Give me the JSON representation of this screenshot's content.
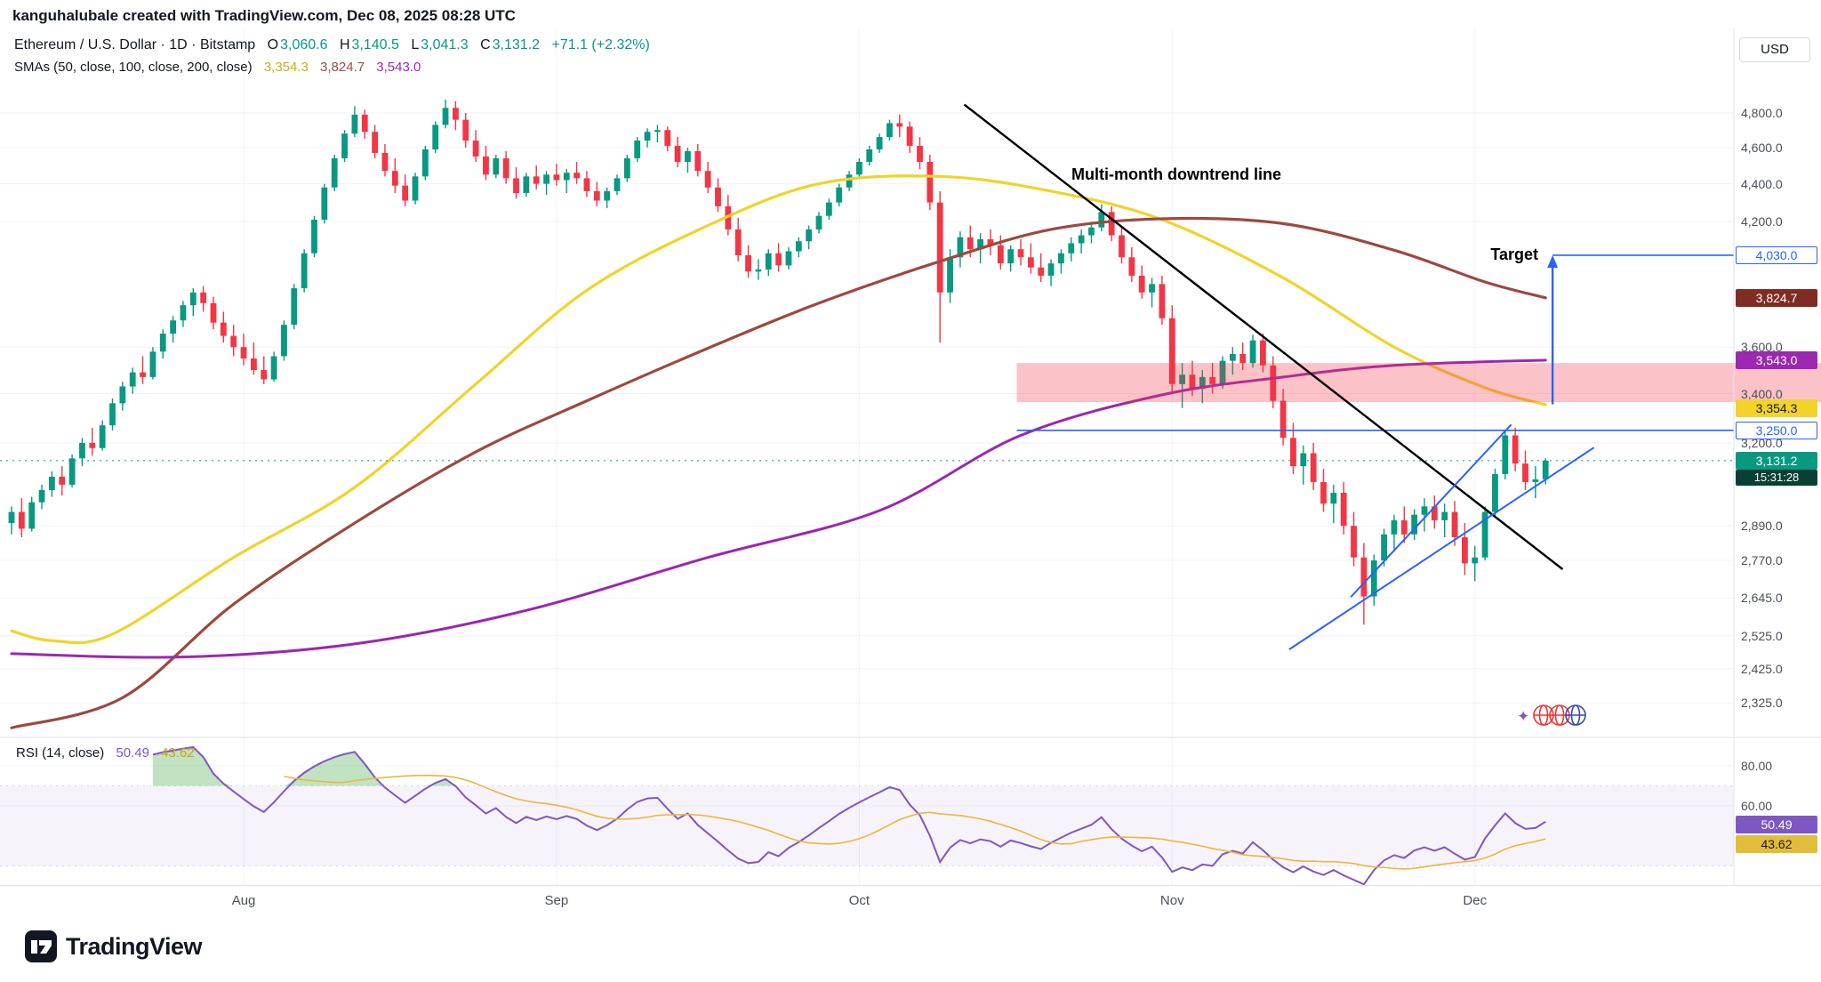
{
  "header": {
    "attribution": "kanguhalubale created with TradingView.com, Dec 08, 2025 08:28 UTC"
  },
  "legend": {
    "title": "Ethereum / U.S. Dollar · 1D · Bitstamp",
    "ohlc": {
      "o_key": "O",
      "o": "3,060.6",
      "h_key": "H",
      "h": "3,140.5",
      "l_key": "L",
      "l": "3,041.3",
      "c_key": "C",
      "c": "3,131.2",
      "change": "+71.1 (+2.32%)"
    },
    "sma_label": "SMAs (50, close, 100, close, 200, close)",
    "sma_values": {
      "sma50": "3,354.3",
      "sma100": "3,824.7",
      "sma200": "3,543.0"
    },
    "rsi_label": "RSI (14, close)",
    "rsi_values": {
      "rsi": "50.49",
      "ma": "43.62"
    }
  },
  "annotations": {
    "downtrend": "Multi-month downtrend line",
    "target": "Target"
  },
  "price_axis": {
    "currency": "USD",
    "ticks": [
      {
        "label": "4,800.0",
        "value": 4800
      },
      {
        "label": "4,600.0",
        "value": 4600
      },
      {
        "label": "4,400.0",
        "value": 4400
      },
      {
        "label": "4,200.0",
        "value": 4200
      },
      {
        "label": "3,600.0",
        "value": 3600
      },
      {
        "label": "3,400.0",
        "value": 3400
      },
      {
        "label": "3,200.0",
        "value": 3200
      },
      {
        "label": "2,890.0",
        "value": 2890
      },
      {
        "label": "2,770.0",
        "value": 2770
      },
      {
        "label": "2,645.0",
        "value": 2645
      },
      {
        "label": "2,525.0",
        "value": 2525
      },
      {
        "label": "2,425.0",
        "value": 2425
      },
      {
        "label": "2,325.0",
        "value": 2325
      }
    ],
    "badges": [
      {
        "label": "4,030.0",
        "value": 4030,
        "style": "outline"
      },
      {
        "label": "3,824.7",
        "value": 3824.7,
        "bg": "#7f2d23",
        "fg": "#ffffff"
      },
      {
        "label": "3,543.0",
        "value": 3543,
        "bg": "#9c27b0",
        "fg": "#ffffff"
      },
      {
        "label": "3,354.3",
        "value": 3354.3,
        "bg": "#f1d32b",
        "fg": "#131722",
        "nudge": 4
      },
      {
        "label": "3,250.0",
        "value": 3250,
        "style": "outline"
      },
      {
        "label": "3,131.2",
        "value": 3131.2,
        "bg": "#089981",
        "fg": "#ffffff",
        "countdown": "15:31:28"
      }
    ]
  },
  "rsi_axis": {
    "ticks": [
      {
        "label": "80.00",
        "value": 80
      },
      {
        "label": "60.00",
        "value": 60
      }
    ],
    "badges": [
      {
        "label": "50.49",
        "value": 50.49,
        "bg": "#7e57c2",
        "fg": "#ffffff"
      },
      {
        "label": "43.62",
        "value": 43.62,
        "bg": "#e2bd3a",
        "fg": "#131722"
      }
    ]
  },
  "footer": {
    "brand": "TradingView"
  },
  "chart_data": {
    "type": "candlestick",
    "title": "Ethereum / U.S. Dollar, 1D, Bitstamp",
    "y_scale": "log",
    "y_visible_range": [
      2325,
      4880
    ],
    "last_price": 3131.2,
    "colors": {
      "up": "#089981",
      "down": "#f23645",
      "sma50": "#f1d32b",
      "sma100": "#9c4a3d",
      "sma200": "#9c27b0",
      "drawing": "#2962ff",
      "rsi_line": "#7e57c2",
      "rsi_ma": "#eab839",
      "grid": "#f0f3fa"
    },
    "months": [
      {
        "label": "Aug",
        "day": 23
      },
      {
        "label": "Sep",
        "day": 54
      },
      {
        "label": "Oct",
        "day": 84
      },
      {
        "label": "Nov",
        "day": 115
      },
      {
        "label": "Dec",
        "day": 145
      }
    ],
    "candles": [
      [
        2900,
        2960,
        2860,
        2940
      ],
      [
        2940,
        2990,
        2850,
        2880
      ],
      [
        2880,
        2995,
        2870,
        2975
      ],
      [
        2975,
        3040,
        2950,
        3020
      ],
      [
        3020,
        3090,
        2995,
        3070
      ],
      [
        3070,
        3110,
        3000,
        3040
      ],
      [
        3040,
        3155,
        3030,
        3140
      ],
      [
        3140,
        3220,
        3110,
        3200
      ],
      [
        3200,
        3260,
        3150,
        3180
      ],
      [
        3180,
        3290,
        3170,
        3270
      ],
      [
        3270,
        3380,
        3250,
        3360
      ],
      [
        3360,
        3450,
        3330,
        3430
      ],
      [
        3430,
        3510,
        3400,
        3490
      ],
      [
        3490,
        3560,
        3440,
        3470
      ],
      [
        3470,
        3600,
        3460,
        3580
      ],
      [
        3580,
        3680,
        3550,
        3660
      ],
      [
        3660,
        3740,
        3620,
        3720
      ],
      [
        3720,
        3810,
        3690,
        3790
      ],
      [
        3790,
        3870,
        3740,
        3850
      ],
      [
        3850,
        3880,
        3760,
        3800
      ],
      [
        3800,
        3830,
        3680,
        3710
      ],
      [
        3710,
        3760,
        3620,
        3650
      ],
      [
        3650,
        3700,
        3560,
        3600
      ],
      [
        3600,
        3660,
        3520,
        3550
      ],
      [
        3550,
        3620,
        3480,
        3500
      ],
      [
        3500,
        3560,
        3440,
        3460
      ],
      [
        3460,
        3580,
        3450,
        3560
      ],
      [
        3560,
        3720,
        3540,
        3700
      ],
      [
        3700,
        3890,
        3680,
        3870
      ],
      [
        3870,
        4060,
        3850,
        4040
      ],
      [
        4040,
        4230,
        4020,
        4210
      ],
      [
        4210,
        4400,
        4190,
        4380
      ],
      [
        4380,
        4560,
        4360,
        4540
      ],
      [
        4540,
        4700,
        4520,
        4680
      ],
      [
        4680,
        4840,
        4660,
        4790
      ],
      [
        4790,
        4820,
        4650,
        4690
      ],
      [
        4690,
        4730,
        4540,
        4570
      ],
      [
        4570,
        4620,
        4440,
        4470
      ],
      [
        4470,
        4540,
        4350,
        4390
      ],
      [
        4390,
        4450,
        4280,
        4310
      ],
      [
        4310,
        4460,
        4290,
        4440
      ],
      [
        4440,
        4610,
        4420,
        4590
      ],
      [
        4590,
        4750,
        4570,
        4730
      ],
      [
        4730,
        4880,
        4710,
        4830
      ],
      [
        4830,
        4870,
        4700,
        4760
      ],
      [
        4760,
        4800,
        4600,
        4640
      ],
      [
        4640,
        4700,
        4520,
        4550
      ],
      [
        4550,
        4610,
        4420,
        4450
      ],
      [
        4450,
        4560,
        4430,
        4540
      ],
      [
        4540,
        4580,
        4400,
        4430
      ],
      [
        4430,
        4490,
        4320,
        4350
      ],
      [
        4350,
        4460,
        4330,
        4440
      ],
      [
        4440,
        4500,
        4370,
        4400
      ],
      [
        4400,
        4470,
        4340,
        4450
      ],
      [
        4450,
        4510,
        4390,
        4420
      ],
      [
        4420,
        4480,
        4350,
        4460
      ],
      [
        4460,
        4520,
        4400,
        4430
      ],
      [
        4430,
        4470,
        4330,
        4360
      ],
      [
        4360,
        4410,
        4280,
        4310
      ],
      [
        4310,
        4380,
        4270,
        4360
      ],
      [
        4360,
        4450,
        4340,
        4430
      ],
      [
        4430,
        4560,
        4410,
        4540
      ],
      [
        4540,
        4660,
        4520,
        4640
      ],
      [
        4640,
        4710,
        4600,
        4690
      ],
      [
        4690,
        4730,
        4630,
        4700
      ],
      [
        4700,
        4720,
        4580,
        4610
      ],
      [
        4610,
        4660,
        4490,
        4520
      ],
      [
        4520,
        4600,
        4460,
        4580
      ],
      [
        4580,
        4620,
        4440,
        4470
      ],
      [
        4470,
        4520,
        4350,
        4380
      ],
      [
        4380,
        4430,
        4250,
        4280
      ],
      [
        4280,
        4340,
        4130,
        4160
      ],
      [
        4160,
        4220,
        4000,
        4030
      ],
      [
        4030,
        4080,
        3920,
        3950
      ],
      [
        3950,
        4010,
        3910,
        3960
      ],
      [
        3960,
        4060,
        3930,
        4040
      ],
      [
        4040,
        4090,
        3950,
        3980
      ],
      [
        3980,
        4070,
        3960,
        4050
      ],
      [
        4050,
        4120,
        4020,
        4100
      ],
      [
        4100,
        4180,
        4060,
        4160
      ],
      [
        4160,
        4250,
        4140,
        4230
      ],
      [
        4230,
        4320,
        4210,
        4300
      ],
      [
        4300,
        4400,
        4280,
        4380
      ],
      [
        4380,
        4470,
        4360,
        4450
      ],
      [
        4450,
        4540,
        4430,
        4520
      ],
      [
        4520,
        4610,
        4500,
        4590
      ],
      [
        4590,
        4680,
        4570,
        4660
      ],
      [
        4660,
        4760,
        4640,
        4740
      ],
      [
        4740,
        4790,
        4660,
        4720
      ],
      [
        4720,
        4750,
        4570,
        4610
      ],
      [
        4610,
        4660,
        4480,
        4520
      ],
      [
        4520,
        4560,
        4260,
        4300
      ],
      [
        4300,
        4360,
        3620,
        3850
      ],
      [
        3850,
        4060,
        3800,
        4020
      ],
      [
        4020,
        4150,
        3970,
        4120
      ],
      [
        4120,
        4180,
        4020,
        4060
      ],
      [
        4060,
        4140,
        3990,
        4110
      ],
      [
        4110,
        4160,
        4030,
        4080
      ],
      [
        4080,
        4130,
        3960,
        3990
      ],
      [
        3990,
        4080,
        3950,
        4060
      ],
      [
        4060,
        4110,
        3980,
        4020
      ],
      [
        4020,
        4090,
        3940,
        3970
      ],
      [
        3970,
        4040,
        3900,
        3930
      ],
      [
        3930,
        4010,
        3880,
        3990
      ],
      [
        3990,
        4060,
        3940,
        4040
      ],
      [
        4040,
        4120,
        4000,
        4090
      ],
      [
        4090,
        4160,
        4040,
        4130
      ],
      [
        4130,
        4200,
        4090,
        4170
      ],
      [
        4170,
        4290,
        4150,
        4250
      ],
      [
        4250,
        4280,
        4100,
        4130
      ],
      [
        4130,
        4170,
        3990,
        4020
      ],
      [
        4020,
        4070,
        3900,
        3930
      ],
      [
        3930,
        3980,
        3820,
        3850
      ],
      [
        3850,
        3920,
        3780,
        3890
      ],
      [
        3890,
        3930,
        3700,
        3730
      ],
      [
        3730,
        3790,
        3400,
        3440
      ],
      [
        3440,
        3530,
        3340,
        3480
      ],
      [
        3480,
        3540,
        3390,
        3420
      ],
      [
        3420,
        3500,
        3360,
        3470
      ],
      [
        3470,
        3530,
        3400,
        3440
      ],
      [
        3440,
        3560,
        3420,
        3540
      ],
      [
        3540,
        3600,
        3480,
        3570
      ],
      [
        3570,
        3620,
        3500,
        3530
      ],
      [
        3530,
        3655,
        3510,
        3630
      ],
      [
        3630,
        3660,
        3490,
        3520
      ],
      [
        3520,
        3560,
        3340,
        3370
      ],
      [
        3370,
        3420,
        3190,
        3220
      ],
      [
        3220,
        3280,
        3080,
        3110
      ],
      [
        3110,
        3190,
        3040,
        3160
      ],
      [
        3160,
        3200,
        3020,
        3050
      ],
      [
        3050,
        3100,
        2940,
        2970
      ],
      [
        2970,
        3040,
        2900,
        3010
      ],
      [
        3010,
        3050,
        2860,
        2890
      ],
      [
        2890,
        2940,
        2750,
        2780
      ],
      [
        2780,
        2830,
        2560,
        2650
      ],
      [
        2650,
        2790,
        2620,
        2770
      ],
      [
        2770,
        2880,
        2750,
        2860
      ],
      [
        2860,
        2930,
        2800,
        2910
      ],
      [
        2910,
        2960,
        2830,
        2860
      ],
      [
        2860,
        2950,
        2840,
        2930
      ],
      [
        2930,
        2990,
        2870,
        2960
      ],
      [
        2960,
        3000,
        2880,
        2910
      ],
      [
        2910,
        2970,
        2850,
        2940
      ],
      [
        2940,
        2980,
        2820,
        2850
      ],
      [
        2850,
        2900,
        2720,
        2760
      ],
      [
        2760,
        2820,
        2700,
        2780
      ],
      [
        2780,
        2960,
        2770,
        2940
      ],
      [
        2940,
        3100,
        2920,
        3080
      ],
      [
        3080,
        3250,
        3060,
        3230
      ],
      [
        3230,
        3260,
        3090,
        3120
      ],
      [
        3120,
        3170,
        3020,
        3050
      ],
      [
        3050,
        3110,
        2990,
        3060
      ],
      [
        3060.6,
        3140.5,
        3041.3,
        3131.2
      ]
    ],
    "sma": [
      {
        "period": 50,
        "color": "#f1d32b",
        "width": 3.2,
        "current": 3354.3,
        "points": [
          [
            0,
            2540
          ],
          [
            4,
            2510
          ],
          [
            10,
            2530
          ],
          [
            22,
            2780
          ],
          [
            34,
            3030
          ],
          [
            46,
            3440
          ],
          [
            57,
            3860
          ],
          [
            69,
            4180
          ],
          [
            80,
            4400
          ],
          [
            92,
            4440
          ],
          [
            103,
            4360
          ],
          [
            114,
            4210
          ],
          [
            126,
            3920
          ],
          [
            137,
            3600
          ],
          [
            146,
            3425
          ],
          [
            152,
            3354.3
          ]
        ]
      },
      {
        "period": 100,
        "color": "#9c4a3d",
        "width": 3.2,
        "current": 3824.7,
        "points": [
          [
            0,
            2255
          ],
          [
            11,
            2340
          ],
          [
            22,
            2625
          ],
          [
            34,
            2900
          ],
          [
            46,
            3165
          ],
          [
            57,
            3370
          ],
          [
            69,
            3595
          ],
          [
            80,
            3800
          ],
          [
            92,
            4000
          ],
          [
            103,
            4160
          ],
          [
            114,
            4215
          ],
          [
            126,
            4190
          ],
          [
            137,
            4055
          ],
          [
            146,
            3900
          ],
          [
            152,
            3824.7
          ]
        ]
      },
      {
        "period": 200,
        "color": "#9c27b0",
        "width": 3,
        "current": 3543.0,
        "points": [
          [
            0,
            2470
          ],
          [
            17,
            2460
          ],
          [
            34,
            2500
          ],
          [
            51,
            2605
          ],
          [
            69,
            2780
          ],
          [
            86,
            2945
          ],
          [
            100,
            3230
          ],
          [
            114,
            3395
          ],
          [
            126,
            3470
          ],
          [
            137,
            3520
          ],
          [
            152,
            3543
          ]
        ]
      }
    ],
    "rsi": {
      "period": 14,
      "current": 50.49,
      "ma_current": 43.62,
      "overbought": 70,
      "oversold": 30,
      "ticks": [
        80,
        60
      ]
    },
    "drawings": {
      "downtrend_line": {
        "from_day": 94.4,
        "from_price": 4850,
        "to_day": 153.7,
        "to_price": 2740
      },
      "trend_lines": [
        {
          "from_day": 126.6,
          "from_price": 2483,
          "to_day": 156.8,
          "to_price": 3182
        },
        {
          "from_day": 132.7,
          "from_price": 2648,
          "to_day": 148.6,
          "to_price": 3273
        }
      ],
      "support_line": {
        "price": 3250,
        "from_day": 99.6
      },
      "target": {
        "price": 4030,
        "arrow_day": 152.7,
        "arrow_from_price": 3356
      },
      "supply_zone": {
        "from_day": 99.6,
        "price_top": 3530,
        "price_bottom": 3365
      }
    }
  }
}
